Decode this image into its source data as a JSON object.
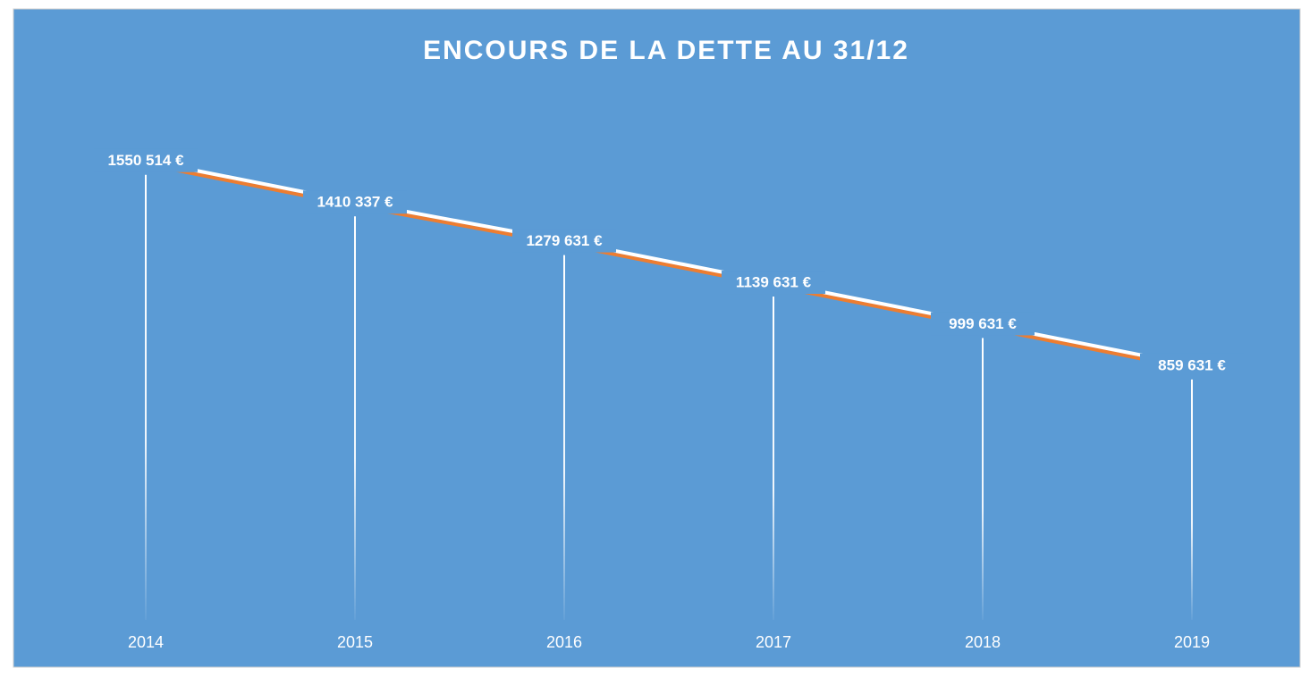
{
  "chart_data": {
    "type": "line",
    "title": "ENCOURS DE LA DETTE AU 31/12",
    "categories": [
      "2014",
      "2015",
      "2016",
      "2017",
      "2018",
      "2019"
    ],
    "values": [
      1550514,
      1410337,
      1279631,
      1139631,
      999631,
      859631
    ],
    "value_labels": [
      "1550 514 €",
      "1410 337 €",
      "1279 631 €",
      "1139 631 €",
      "999 631 €",
      "859 631 €"
    ],
    "color": "#ffffff",
    "shadow_color": "#ed7d31",
    "background": "#5b9bd5",
    "ylim": [
      0,
      1800000
    ],
    "drop_lines": true
  }
}
